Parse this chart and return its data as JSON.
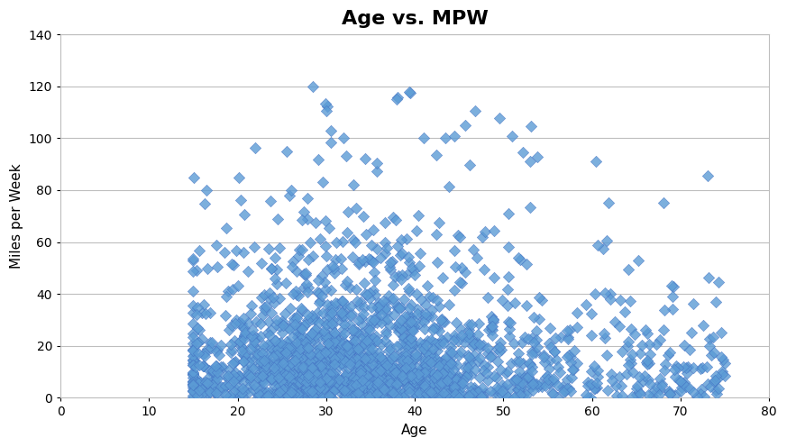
{
  "title": "Age vs. MPW",
  "xlabel": "Age",
  "ylabel": "Miles per Week",
  "xlim": [
    0,
    80
  ],
  "ylim": [
    0,
    140
  ],
  "xticks": [
    0,
    10,
    20,
    30,
    40,
    50,
    60,
    70,
    80
  ],
  "yticks": [
    0,
    20,
    40,
    60,
    80,
    100,
    120,
    140
  ],
  "marker_color": "#5B9BD5",
  "marker_edge_color": "#4472C4",
  "background_color": "#ffffff",
  "grid_color": "#BEBEBE",
  "title_fontsize": 16,
  "label_fontsize": 11,
  "tick_fontsize": 10,
  "seed": 99,
  "n_points": 2000
}
